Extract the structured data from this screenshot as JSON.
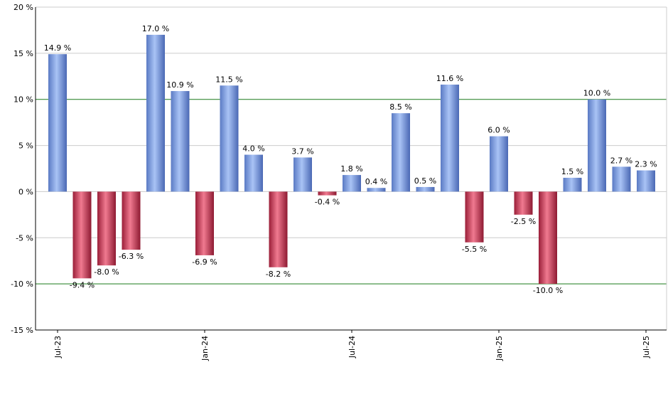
{
  "colors": {
    "positive": "#7f9fe0",
    "negative": "#c8304e",
    "grid": "#cccccc",
    "reference_line": "#1a7a1a",
    "axis": "#000000"
  },
  "chart_data": {
    "type": "bar",
    "title": "",
    "xlabel": "",
    "ylabel": "",
    "ylim": [
      -15,
      20
    ],
    "yticks": [
      20,
      15,
      10,
      5,
      0,
      -5,
      -10,
      -15
    ],
    "ytick_labels": [
      "20 %",
      "15 %",
      "10 %",
      "5 %",
      "0 %",
      "-5 %",
      "-10 %",
      "-15 %"
    ],
    "reference_lines": [
      10,
      -10
    ],
    "grid": true,
    "categories": [
      "2023-07",
      "2023-08",
      "2023-09",
      "2023-10",
      "2023-11",
      "2023-12",
      "2024-01",
      "2024-02",
      "2024-03",
      "2024-04",
      "2024-05",
      "2024-06",
      "2024-07",
      "2024-08",
      "2024-09",
      "2024-10",
      "2024-11",
      "2024-12",
      "2025-01",
      "2025-02",
      "2025-03",
      "2025-04",
      "2025-05",
      "2025-06",
      "2025-07"
    ],
    "values": [
      14.9,
      -9.4,
      -8.0,
      -6.3,
      17.0,
      10.9,
      -6.9,
      11.5,
      4.0,
      -8.2,
      3.7,
      -0.4,
      1.8,
      0.4,
      8.5,
      0.5,
      11.6,
      -5.5,
      6.0,
      -2.5,
      -10.0,
      1.5,
      10.0,
      2.7,
      2.3
    ],
    "value_labels": [
      "14.9 %",
      "-9.4 %",
      "-8.0 %",
      "-6.3 %",
      "17.0 %",
      "10.9 %",
      "-6.9 %",
      "11.5 %",
      "4.0 %",
      "-8.2 %",
      "3.7 %",
      "-0.4 %",
      "1.8 %",
      "0.4 %",
      "8.5 %",
      "0.5 %",
      "11.6 %",
      "-5.5 %",
      "6.0 %",
      "-2.5 %",
      "-10.0 %",
      "1.5 %",
      "10.0 %",
      "2.7 %",
      "2.3 %"
    ],
    "x_ticks": [
      {
        "index": 0,
        "label": "Jul-23"
      },
      {
        "index": 6,
        "label": "Jan-24"
      },
      {
        "index": 12,
        "label": "Jul-24"
      },
      {
        "index": 18,
        "label": "Jan-25"
      },
      {
        "index": 24,
        "label": "Jul-25"
      }
    ]
  }
}
